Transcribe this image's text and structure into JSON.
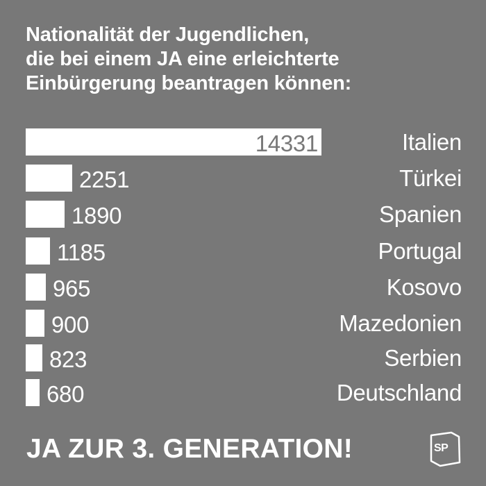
{
  "title": {
    "lines": [
      "Nationalität der Jugendlichen,",
      "die bei einem JA eine erleichterte",
      "Einbürgerung beantragen können:"
    ]
  },
  "colors": {
    "background": "#787878",
    "bar": "#ffffff",
    "text": "#ffffff"
  },
  "chart_data": {
    "type": "bar",
    "orientation": "horizontal",
    "title": "Nationalität der Jugendlichen, die bei einem JA eine erleichterte Einbürgerung beantragen können:",
    "categories": [
      "Italien",
      "Türkei",
      "Spanien",
      "Portugal",
      "Kosovo",
      "Mazedonien",
      "Serbien",
      "Deutschland"
    ],
    "values": [
      14331,
      2251,
      1890,
      1185,
      965,
      900,
      823,
      680
    ],
    "value_labels": [
      "14331",
      "2251",
      "1890",
      "1185",
      "965",
      "900",
      "823",
      "680"
    ],
    "xlabel": "",
    "ylabel": "",
    "xlim": [
      0,
      14331
    ],
    "grid": false,
    "legend": null,
    "data_labels": true
  },
  "footer": {
    "slogan": "JA ZUR 3. GENERATION!",
    "logo_text": "SP",
    "logo_icon": "sp-party-logo-icon"
  }
}
